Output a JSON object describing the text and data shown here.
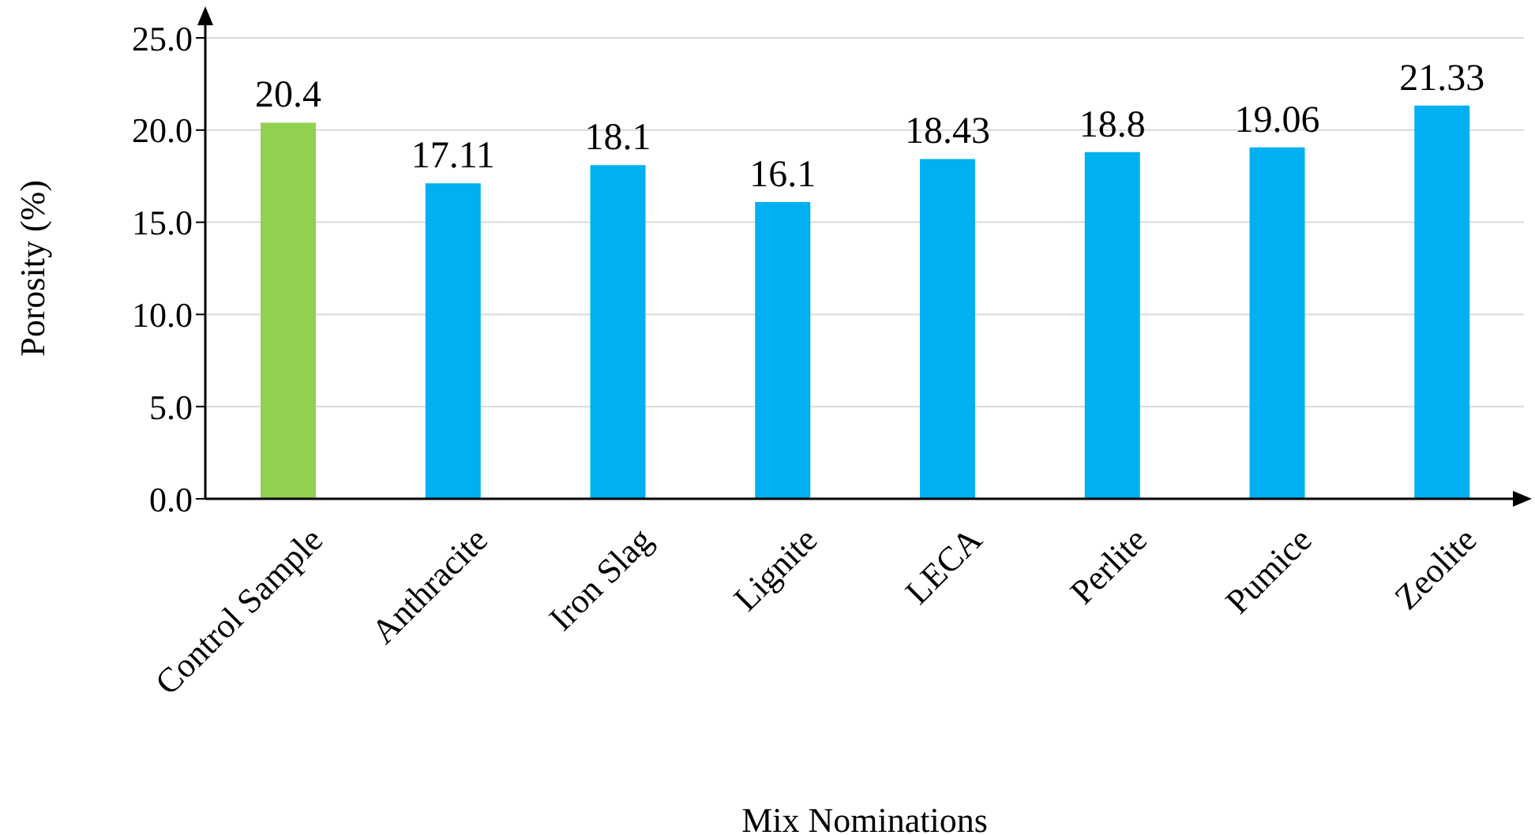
{
  "chart_data": {
    "type": "bar",
    "xlabel": "Mix Nominations",
    "ylabel": "Porosity (%)",
    "categories": [
      "Control Sample",
      "Anthracite",
      "Iron Slag",
      "Lignite",
      "LECA",
      "Perlite",
      "Pumice",
      "Zeolite"
    ],
    "values": [
      20.4,
      17.11,
      18.1,
      16.1,
      18.43,
      18.8,
      19.06,
      21.33
    ],
    "colors": [
      "#92d050",
      "#00b0f0",
      "#00b0f0",
      "#00b0f0",
      "#00b0f0",
      "#00b0f0",
      "#00b0f0",
      "#00b0f0"
    ],
    "ylim": [
      0,
      25
    ],
    "yticks": [
      {
        "value": 0,
        "label": "0.0"
      },
      {
        "value": 5,
        "label": "5.0"
      },
      {
        "value": 10,
        "label": "10.0"
      },
      {
        "value": 15,
        "label": "15.0"
      },
      {
        "value": 20,
        "label": "20.0"
      },
      {
        "value": 25,
        "label": "25.0"
      }
    ],
    "grid": "y",
    "data_labels": true,
    "legend": false
  }
}
